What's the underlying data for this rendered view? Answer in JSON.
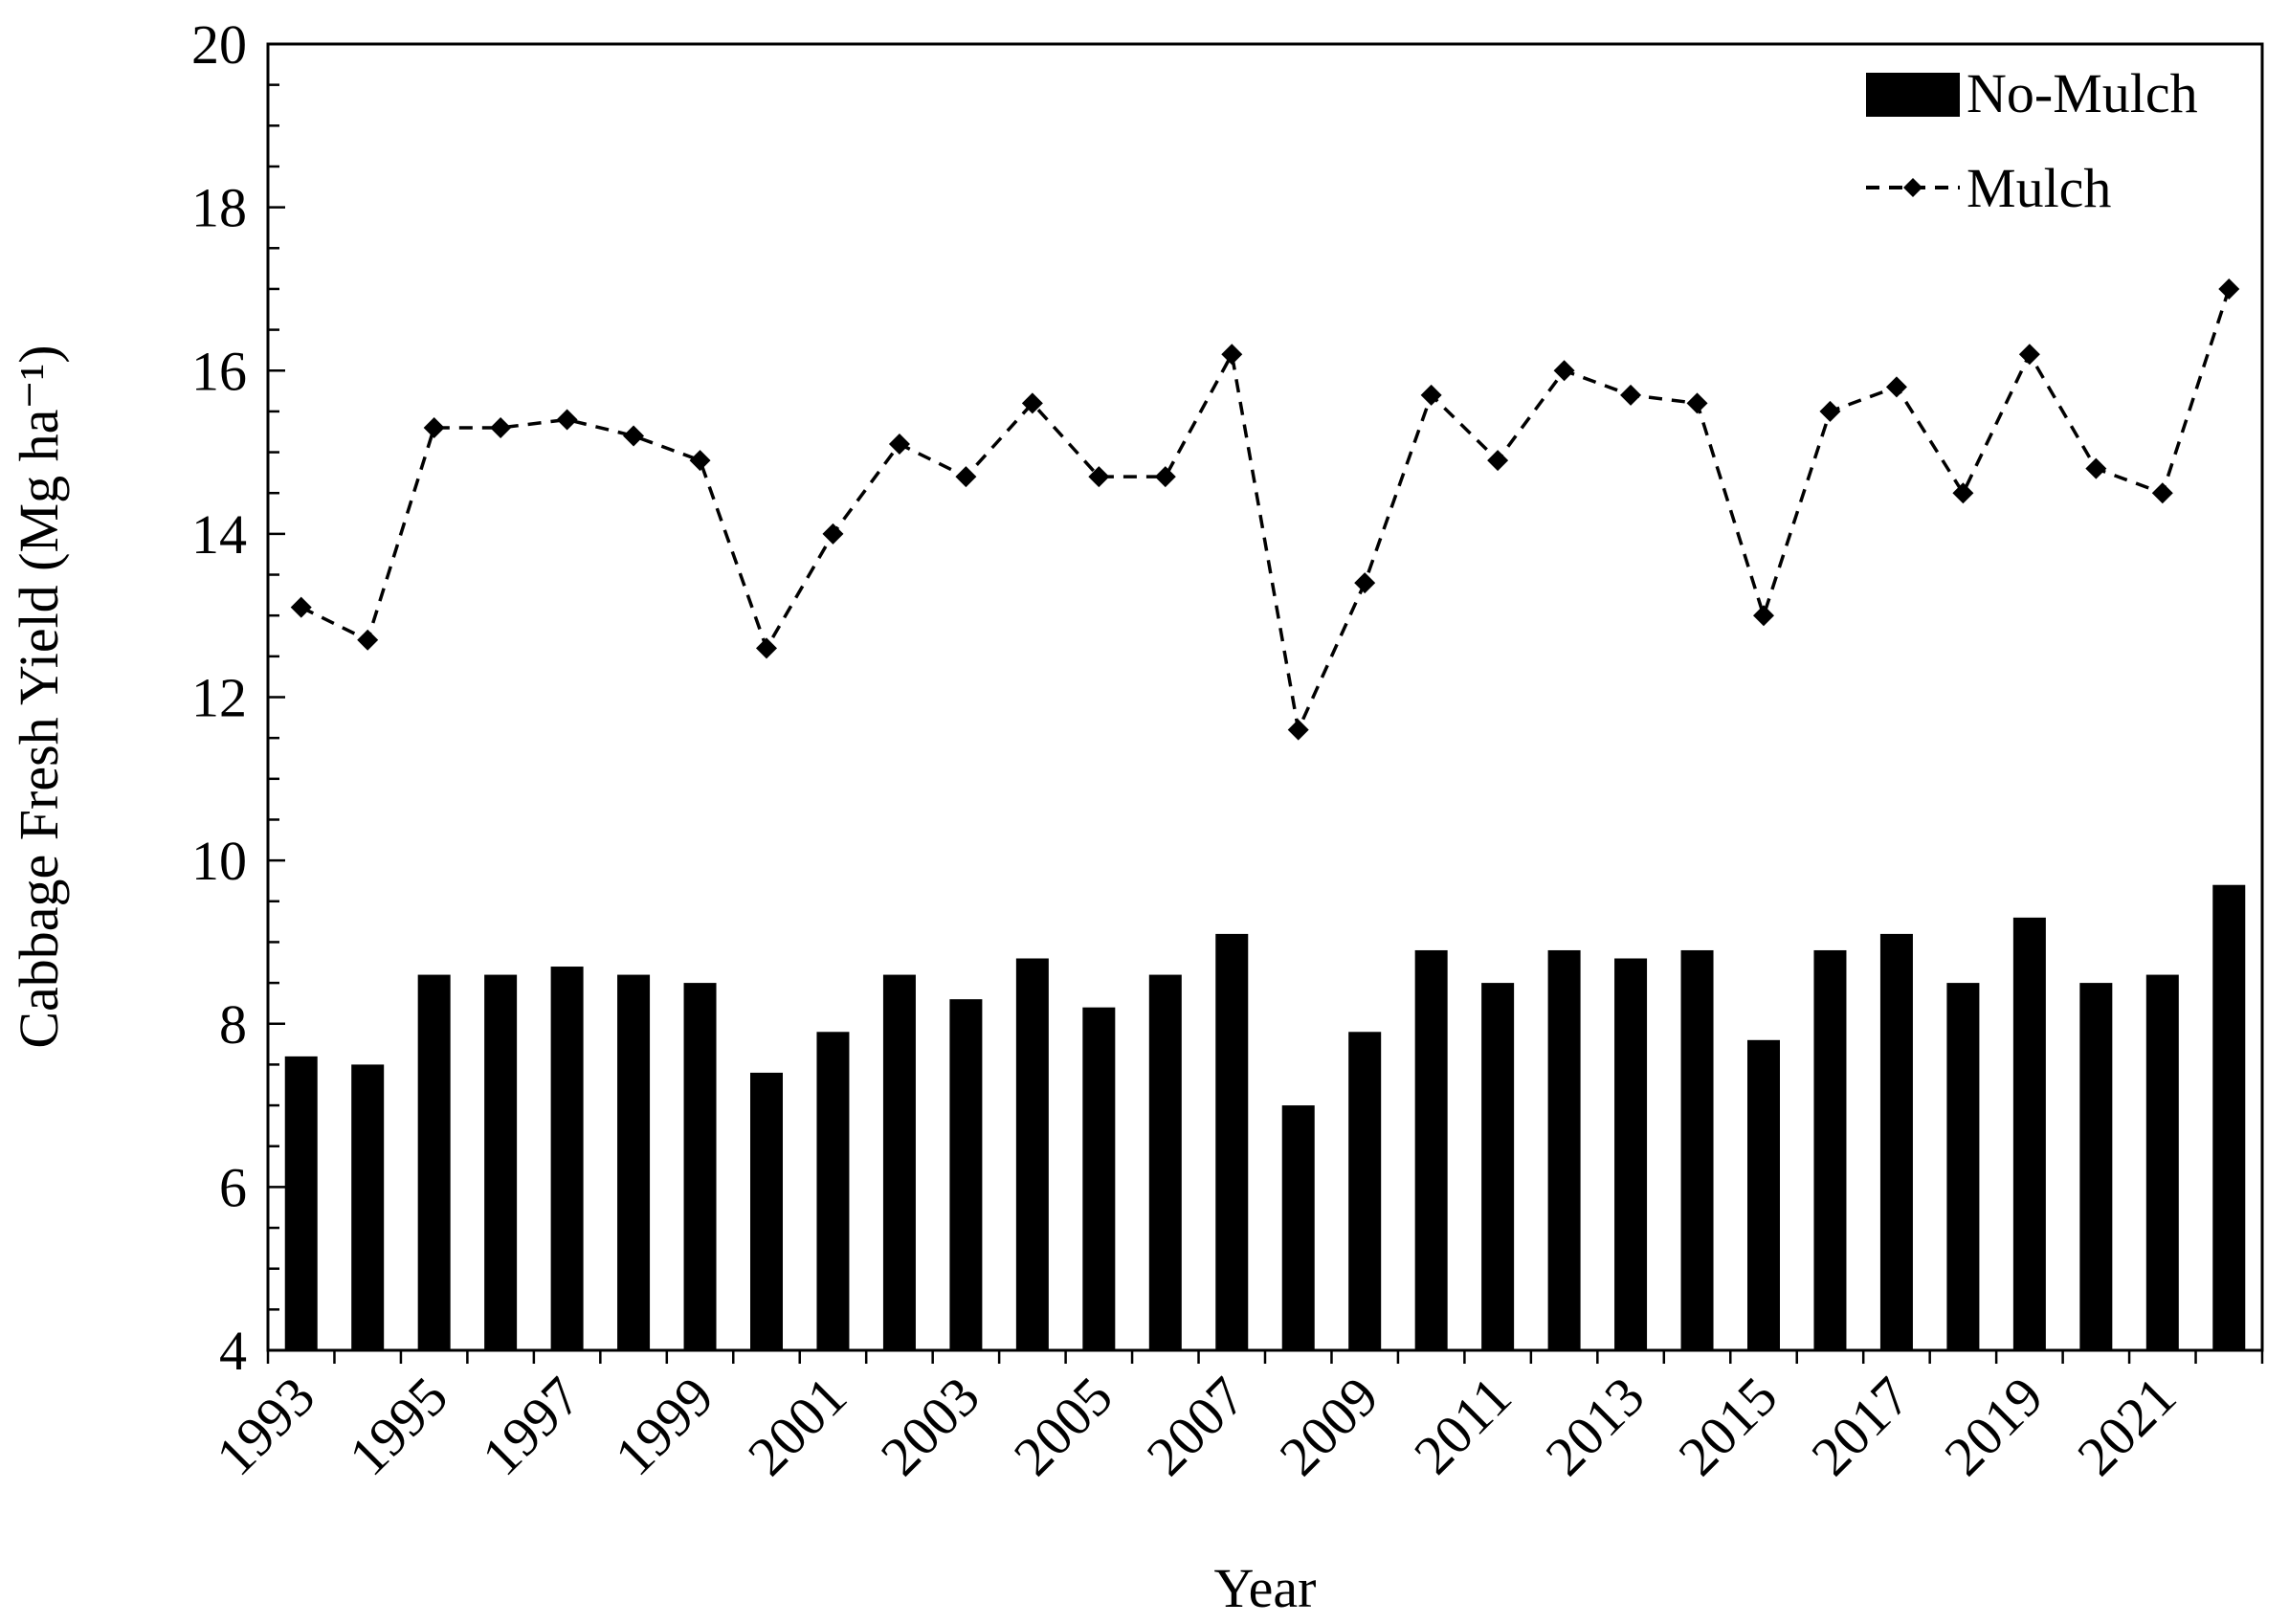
{
  "chart_data": {
    "type": "bar",
    "xlabel": "Year",
    "ylabel": "Cabbage Fresh Yield (Mg ha⁻¹)",
    "ylim": [
      4,
      20
    ],
    "yticks": [
      4,
      6,
      8,
      10,
      12,
      14,
      16,
      18,
      20
    ],
    "categories": [
      "1993",
      "1994",
      "1995",
      "1996",
      "1997",
      "1998",
      "1999",
      "2000",
      "2001",
      "2002",
      "2003",
      "2004",
      "2005",
      "2006",
      "2007",
      "2008",
      "2009",
      "2010",
      "2011",
      "2012",
      "2013",
      "2014",
      "2015",
      "2016",
      "2017",
      "2018",
      "2019",
      "2020",
      "2021",
      "2022"
    ],
    "xtick_labels": [
      "1993",
      "1995",
      "1997",
      "1999",
      "2001",
      "2003",
      "2005",
      "2007",
      "2009",
      "2011",
      "2013",
      "2015",
      "2017",
      "2019",
      "2021"
    ],
    "series": [
      {
        "name": "No-Mulch",
        "style": "bar",
        "color": "#000000",
        "values": [
          7.6,
          7.5,
          8.6,
          8.6,
          8.7,
          8.6,
          8.5,
          7.4,
          7.9,
          8.6,
          8.3,
          8.8,
          8.2,
          8.6,
          9.1,
          7.0,
          7.9,
          8.9,
          8.5,
          8.9,
          8.8,
          8.9,
          7.8,
          8.9,
          9.1,
          8.5,
          9.3,
          8.5,
          8.6,
          9.7
        ]
      },
      {
        "name": "Mulch",
        "style": "dashed-line-diamond",
        "color": "#000000",
        "values": [
          13.1,
          12.7,
          15.3,
          15.3,
          15.4,
          15.2,
          14.9,
          12.6,
          14.0,
          15.1,
          14.7,
          15.6,
          14.7,
          14.7,
          16.2,
          11.6,
          13.4,
          15.7,
          14.9,
          16.0,
          15.7,
          15.6,
          13.0,
          15.5,
          15.8,
          14.5,
          16.2,
          14.8,
          14.5,
          17.0
        ]
      }
    ],
    "legend_position": "top-right",
    "grid": false
  }
}
